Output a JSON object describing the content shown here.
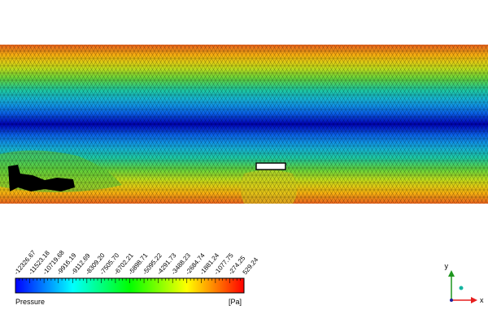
{
  "legend": {
    "title": "Pressure",
    "unit": "[Pa]",
    "ticks": [
      "-12326.67",
      "-11523.18",
      "-10719.68",
      "-9916.19",
      "-9112.69",
      "-8309.20",
      "-7505.70",
      "-6702.21",
      "-5898.71",
      "-5095.22",
      "-4291.73",
      "-3488.23",
      "-2684.74",
      "-1881.24",
      "-1077.75",
      "-274.25",
      "529.24"
    ],
    "colors": [
      "#0000ff",
      "#00ffff",
      "#00ff00",
      "#ffff00",
      "#ff0000"
    ]
  },
  "field": {
    "colors": [
      "#e8641e",
      "#f5b40f",
      "#c8dc19",
      "#64d23c",
      "#1ec8a0",
      "#14aadc",
      "#0a64e6",
      "#0000b4",
      "#0a64e6",
      "#14aadc",
      "#1ec8a0",
      "#64d23c",
      "#c8dc19",
      "#f5b40f",
      "#e8641e"
    ]
  },
  "axes": {
    "y_label": "y",
    "x_label": "x",
    "y_color": "#1e961e",
    "x_color": "#e61e1e",
    "z_color": "#14b4a0"
  }
}
